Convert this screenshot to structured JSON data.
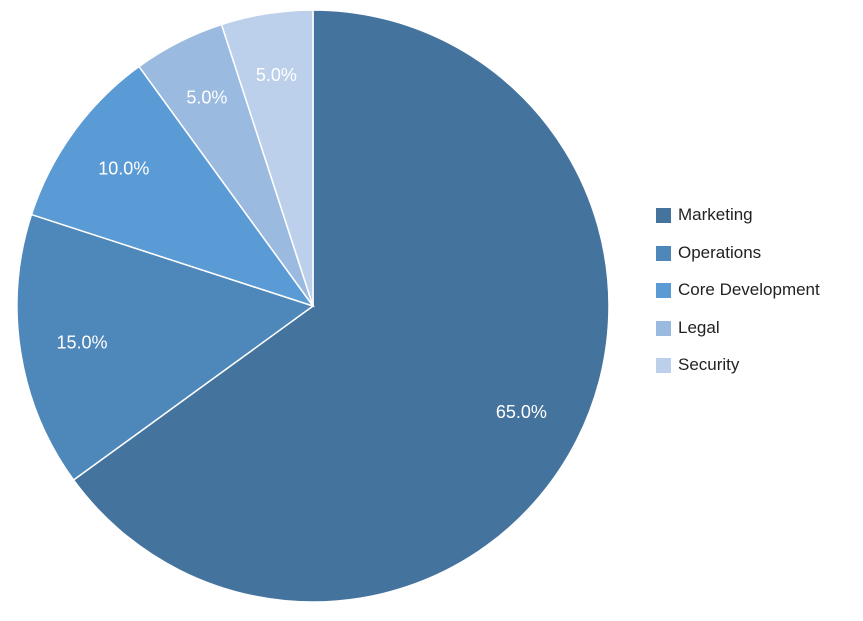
{
  "chart_data": {
    "type": "pie",
    "title": "",
    "slices": [
      {
        "label": "Marketing",
        "value": 65.0,
        "display": "65.0%",
        "color": "#44739e"
      },
      {
        "label": "Operations",
        "value": 15.0,
        "display": "15.0%",
        "color": "#4e87b9"
      },
      {
        "label": "Core Development",
        "value": 10.0,
        "display": "10.0%",
        "color": "#5b9bd5"
      },
      {
        "label": "Legal",
        "value": 5.0,
        "display": "5.0%",
        "color": "#9abae0"
      },
      {
        "label": "Security",
        "value": 5.0,
        "display": "5.0%",
        "color": "#bcd0eb"
      }
    ],
    "legend_position": "right",
    "start_angle": "top",
    "direction": "clockwise"
  }
}
